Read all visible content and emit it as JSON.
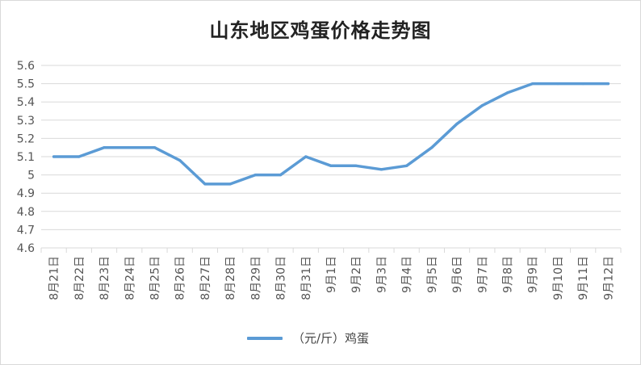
{
  "chart_data": {
    "type": "line",
    "title": "山东地区鸡蛋价格走势图",
    "categories": [
      "8月21日",
      "8月22日",
      "8月23日",
      "8月24日",
      "8月25日",
      "8月26日",
      "8月27日",
      "8月28日",
      "8月29日",
      "8月30日",
      "8月31日",
      "9月1日",
      "9月2日",
      "9月3日",
      "9月4日",
      "9月5日",
      "9月6日",
      "9月7日",
      "9月8日",
      "9月9日",
      "9月10日",
      "9月11日",
      "9月12日"
    ],
    "series": [
      {
        "name": "（元/斤）鸡蛋",
        "color": "#5b9bd5",
        "values": [
          5.1,
          5.1,
          5.15,
          5.15,
          5.15,
          5.08,
          4.95,
          4.95,
          5.0,
          5.0,
          5.1,
          5.05,
          5.05,
          5.03,
          5.05,
          5.15,
          5.28,
          5.38,
          5.45,
          5.5,
          5.5,
          5.5,
          5.5
        ]
      }
    ],
    "ylim": [
      4.6,
      5.6
    ],
    "yticks": [
      "4.6",
      "4.7",
      "4.8",
      "4.9",
      "5",
      "5.1",
      "5.2",
      "5.3",
      "5.4",
      "5.5",
      "5.6"
    ],
    "grid": true,
    "legend": "bottom"
  }
}
